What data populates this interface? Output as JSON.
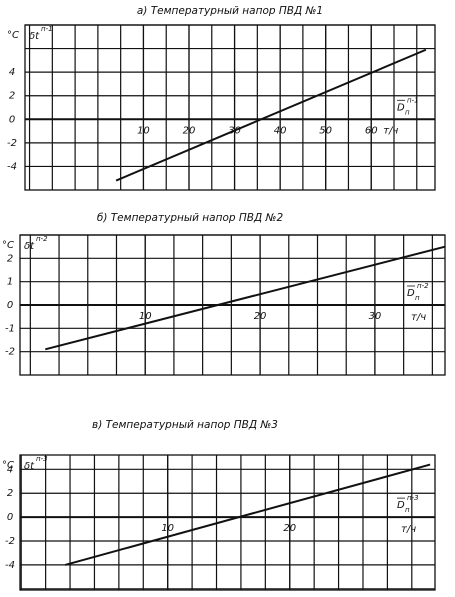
{
  "chart_data": [
    {
      "type": "line",
      "title": "а) Температурный напор ПВД №1",
      "y_unit": "°C",
      "ylabel": "δt",
      "ylabel_sup": "п-1",
      "xlabel": "D",
      "xlabel_sub": "п",
      "xlabel_sup": "п-1",
      "x_unit": "т/ч",
      "x": [
        4,
        72
      ],
      "values": [
        -5.2,
        5.9
      ],
      "color": "#111111",
      "xlim": [
        -16,
        74
      ],
      "ylim": [
        -6,
        8
      ],
      "xticks": [
        10,
        20,
        30,
        40,
        50,
        60
      ],
      "yticks": [
        -4,
        -2,
        0,
        2,
        4
      ],
      "grid": true,
      "xgrid_divisions": 2
    },
    {
      "type": "line",
      "title": "б) Температурный напор ПВД №2",
      "y_unit": "°C",
      "ylabel": "δt",
      "ylabel_sup": "п-2",
      "xlabel": "D",
      "xlabel_sub": "п",
      "xlabel_sup": "п-2",
      "x_unit": "т/ч",
      "x": [
        1.3,
        36.1
      ],
      "values": [
        -1.9,
        2.5
      ],
      "color": "#111111",
      "xlim": [
        -0.9,
        36.1
      ],
      "ylim": [
        -3,
        3
      ],
      "xticks": [
        10,
        20,
        30
      ],
      "yticks": [
        -2,
        -1,
        0,
        1,
        2
      ],
      "grid": true,
      "xgrid_divisions": 4
    },
    {
      "type": "line",
      "title": "в) Температурный напор ПВД №3",
      "y_unit": "°C",
      "ylabel": "δt",
      "ylabel_sup": "п-3",
      "xlabel": "D",
      "xlabel_sub": "п",
      "xlabel_sup": "п-3",
      "x_unit": "т/ч",
      "x": [
        1.6,
        31.5
      ],
      "values": [
        -4,
        4.4
      ],
      "color": "#111111",
      "xlim": [
        -2.1,
        31.9
      ],
      "ylim": [
        -6.1,
        5.2
      ],
      "xticks": [
        10,
        20
      ],
      "yticks": [
        -4,
        -2,
        0,
        2,
        4
      ],
      "grid": true,
      "xgrid_divisions": 5
    }
  ]
}
